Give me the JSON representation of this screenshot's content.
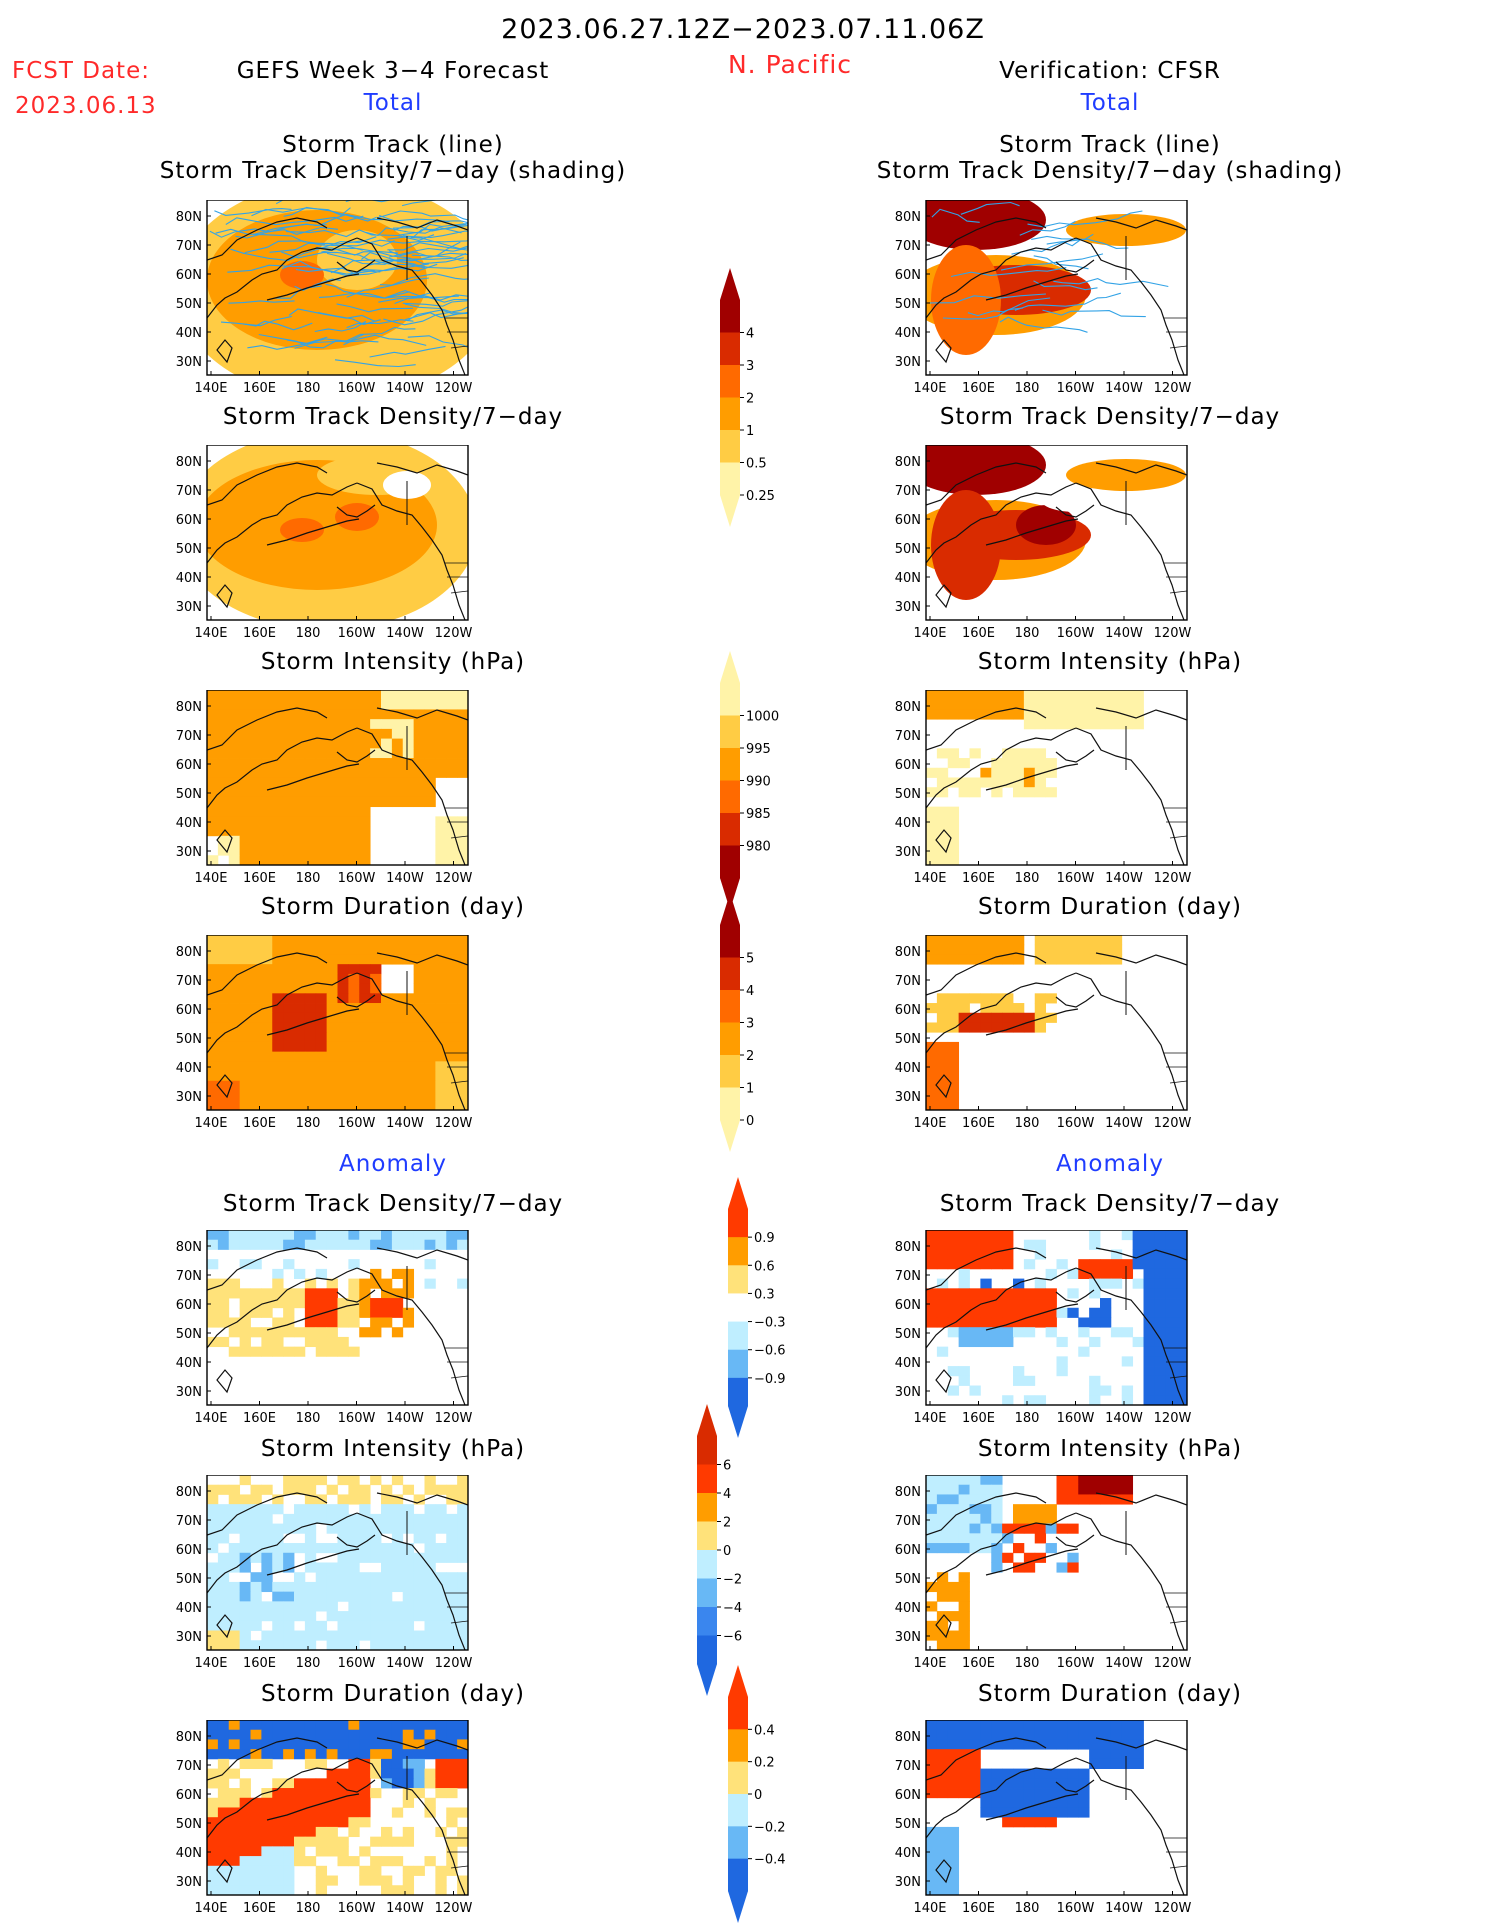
{
  "header": {
    "date_range": "2023.06.27.12Z−2023.07.11.06Z",
    "region": "N. Pacific",
    "fcst_date_label": "FCST Date:",
    "fcst_date_value": "2023.06.13",
    "left_title": "GEFS Week 3−4 Forecast",
    "right_title": "Verification: CFSR",
    "total_label": "Total",
    "anomaly_label": "Anomaly"
  },
  "axes": {
    "lat_labels": [
      "80N",
      "70N",
      "60N",
      "50N",
      "40N",
      "30N"
    ],
    "lon_labels": [
      "140E",
      "160E",
      "180",
      "160W",
      "140W",
      "120W"
    ]
  },
  "panels": {
    "track_line_title": "Storm Track (line)",
    "track_shade_title": "Storm Track Density/7−day (shading)",
    "density_title": "Storm Track Density/7−day",
    "intensity_title": "Storm Intensity (hPa)",
    "duration_title": "Storm Duration (day)"
  },
  "colorbars": {
    "density_total": {
      "labels": [
        "4",
        "3",
        "2",
        "1",
        "0.5",
        "0.25"
      ],
      "colors": [
        "#a00000",
        "#d92b00",
        "#ff6a00",
        "#ff9d00",
        "#ffcc44",
        "#fff3a8"
      ]
    },
    "intensity_total": {
      "labels": [
        "1000",
        "995",
        "990",
        "985",
        "980"
      ],
      "colors": [
        "#fff3a8",
        "#ffcc44",
        "#ff9d00",
        "#ff6a00",
        "#d92b00",
        "#a00000"
      ]
    },
    "duration_total": {
      "labels": [
        "5",
        "4",
        "3",
        "2",
        "1",
        "0"
      ],
      "colors": [
        "#a00000",
        "#d92b00",
        "#ff6a00",
        "#ff9d00",
        "#ffcc44",
        "#fff3a8"
      ]
    },
    "density_anom": {
      "labels": [
        "0.9",
        "0.6",
        "0.3",
        "−0.3",
        "−0.6",
        "−0.9"
      ],
      "colors": [
        "#ff3a00",
        "#ff9d00",
        "#ffe27a",
        "#ffffff",
        "#bfeeff",
        "#68b8f5",
        "#1f68e0"
      ]
    },
    "intensity_anom": {
      "labels": [
        "6",
        "4",
        "2",
        "0",
        "−2",
        "−4",
        "−6"
      ],
      "colors": [
        "#d92b00",
        "#ff3a00",
        "#ff9d00",
        "#ffe27a",
        "#bfeeff",
        "#68b8f5",
        "#3a86ee",
        "#1f68e0"
      ]
    },
    "duration_anom": {
      "labels": [
        "0.4",
        "0.2",
        "0",
        "−0.2",
        "−0.4"
      ],
      "colors": [
        "#ff3a00",
        "#ff9d00",
        "#ffe27a",
        "#bfeeff",
        "#68b8f5",
        "#1f68e0"
      ]
    }
  }
}
